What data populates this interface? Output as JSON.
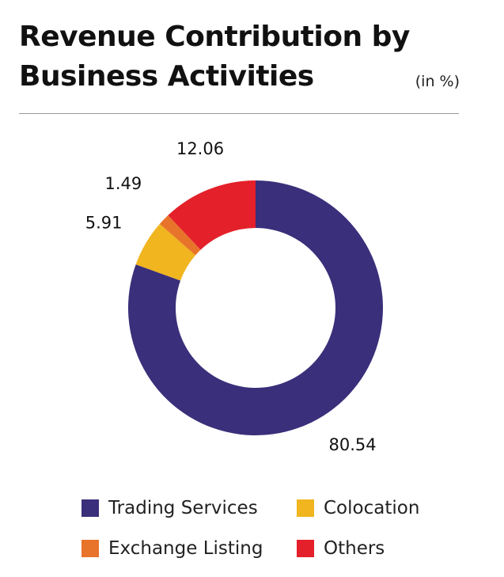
{
  "header": {
    "title_line1": "Revenue Contribution by",
    "title_line2": "Business Activities",
    "unit": "(in %)"
  },
  "chart_data": {
    "type": "pie",
    "donut": true,
    "categories": [
      "Trading Services",
      "Colocation",
      "Exchange Listing",
      "Others"
    ],
    "values": [
      80.54,
      5.91,
      1.49,
      12.06
    ],
    "data_labels": [
      "80.54",
      "5.91",
      "1.49",
      "12.06"
    ],
    "colors": [
      "#3a2f7a",
      "#f0b51f",
      "#e8732a",
      "#e4202a"
    ],
    "legend_position": "bottom",
    "start": "top",
    "direction": "clockwise"
  }
}
